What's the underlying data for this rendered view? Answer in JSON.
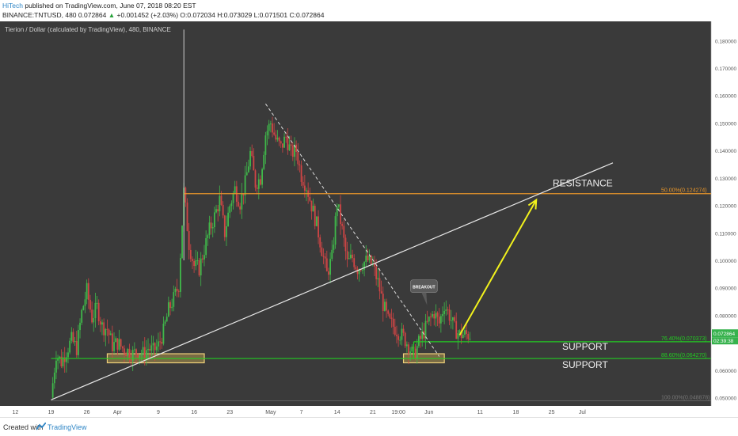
{
  "header": {
    "author": "HiTech",
    "published": "published on TradingView.com, June 07, 2018 08:20 EST",
    "symbol": "BINANCE:TNTUSD, 480",
    "last": "0.072864",
    "change": "+0.001452 (+2.03%)",
    "open": "O:0.072034",
    "high": "H:0.073029",
    "low": "L:0.071501",
    "close": "C:0.072864"
  },
  "colors": {
    "background": "#3a3a3a",
    "up": "#3fb84a",
    "down": "#d04545",
    "resistance": "#e8962a",
    "support": "#22cc22",
    "trendline": "#e8e8e8",
    "projection": "#f2f21c",
    "axis_bg": "#ffffff"
  },
  "chart_data": {
    "type": "candlestick",
    "title": "Tierion / Dollar (calculated by TradingView), 480, BINANCE",
    "ylim": [
      0.047,
      0.187
    ],
    "y_ticks": [
      "0.180000",
      "0.170000",
      "0.160000",
      "0.150000",
      "0.140000",
      "0.130000",
      "0.120000",
      "0.110000",
      "0.100000",
      "0.090000",
      "0.080000",
      "0.060000",
      "0.050000"
    ],
    "x_ticks": [
      {
        "label": "12",
        "day": -7
      },
      {
        "label": "19",
        "day": 0
      },
      {
        "label": "26",
        "day": 7
      },
      {
        "label": "Apr",
        "day": 13
      },
      {
        "label": "9",
        "day": 21
      },
      {
        "label": "16",
        "day": 28
      },
      {
        "label": "23",
        "day": 35
      },
      {
        "label": "May",
        "day": 43
      },
      {
        "label": "7",
        "day": 49
      },
      {
        "label": "14",
        "day": 56
      },
      {
        "label": "21",
        "day": 63
      },
      {
        "label": "19:00",
        "day": 68
      },
      {
        "label": "Jun",
        "day": 74
      },
      {
        "label": "11",
        "day": 84
      },
      {
        "label": "18",
        "day": 91
      },
      {
        "label": "25",
        "day": 98
      },
      {
        "label": "Jul",
        "day": 104
      }
    ],
    "price_path": [
      [
        0,
        0.05
      ],
      [
        1,
        0.066
      ],
      [
        2,
        0.063
      ],
      [
        3,
        0.067
      ],
      [
        4,
        0.071
      ],
      [
        5,
        0.068
      ],
      [
        6,
        0.081
      ],
      [
        7,
        0.089
      ],
      [
        8,
        0.079
      ],
      [
        9,
        0.083
      ],
      [
        10,
        0.076
      ],
      [
        11,
        0.075
      ],
      [
        12,
        0.069
      ],
      [
        13,
        0.07
      ],
      [
        14,
        0.068
      ],
      [
        15,
        0.067
      ],
      [
        16,
        0.066
      ],
      [
        17,
        0.067
      ],
      [
        18,
        0.066
      ],
      [
        19,
        0.068
      ],
      [
        20,
        0.067
      ],
      [
        21,
        0.069
      ],
      [
        22,
        0.074
      ],
      [
        23,
        0.082
      ],
      [
        24,
        0.086
      ],
      [
        25,
        0.091
      ],
      [
        26,
        0.125
      ],
      [
        27,
        0.106
      ],
      [
        28,
        0.098
      ],
      [
        29,
        0.097
      ],
      [
        30,
        0.104
      ],
      [
        31,
        0.111
      ],
      [
        32,
        0.116
      ],
      [
        33,
        0.122
      ],
      [
        34,
        0.11
      ],
      [
        35,
        0.12
      ],
      [
        36,
        0.126
      ],
      [
        37,
        0.121
      ],
      [
        38,
        0.128
      ],
      [
        39,
        0.139
      ],
      [
        40,
        0.128
      ],
      [
        41,
        0.13
      ],
      [
        42,
        0.146
      ],
      [
        43,
        0.15
      ],
      [
        44,
        0.144
      ],
      [
        45,
        0.141
      ],
      [
        46,
        0.145
      ],
      [
        47,
        0.139
      ],
      [
        48,
        0.14
      ],
      [
        49,
        0.131
      ],
      [
        50,
        0.127
      ],
      [
        51,
        0.12
      ],
      [
        52,
        0.113
      ],
      [
        53,
        0.104
      ],
      [
        54,
        0.095
      ],
      [
        55,
        0.101
      ],
      [
        56,
        0.121
      ],
      [
        57,
        0.111
      ],
      [
        58,
        0.099
      ],
      [
        59,
        0.101
      ],
      [
        60,
        0.097
      ],
      [
        61,
        0.099
      ],
      [
        62,
        0.1
      ],
      [
        63,
        0.098
      ],
      [
        64,
        0.092
      ],
      [
        65,
        0.084
      ],
      [
        66,
        0.078
      ],
      [
        67,
        0.076
      ],
      [
        68,
        0.074
      ],
      [
        69,
        0.072
      ],
      [
        70,
        0.069
      ],
      [
        71,
        0.065
      ],
      [
        72,
        0.07
      ],
      [
        73,
        0.074
      ],
      [
        74,
        0.078
      ],
      [
        75,
        0.081
      ],
      [
        76,
        0.077
      ],
      [
        77,
        0.084
      ],
      [
        78,
        0.08
      ],
      [
        79,
        0.075
      ],
      [
        80,
        0.073
      ],
      [
        81,
        0.073
      ],
      [
        82,
        0.0729
      ]
    ],
    "spike_high": {
      "day": 26,
      "value": 0.184
    },
    "levels": [
      {
        "name": "resistance",
        "label": "RESISTANCE",
        "fib": "50.00%(0.124274)",
        "value": 0.124274
      },
      {
        "name": "support-upper",
        "label": "SUPPORT",
        "fib": "76.40%(0.070373)",
        "value": 0.070373
      },
      {
        "name": "support-lower",
        "label": "SUPPORT",
        "fib": "88.60%(0.064270)",
        "value": 0.06427
      },
      {
        "name": "base",
        "label": "",
        "fib": "100.00%(0.048878)",
        "value": 0.048878
      }
    ],
    "trendline": {
      "from": {
        "day": 0,
        "value": 0.0492
      },
      "to": {
        "day": 110,
        "value": 0.1355
      }
    },
    "downtrend": {
      "from": {
        "day": 42,
        "value": 0.157
      },
      "to": {
        "day": 76,
        "value": 0.065
      }
    },
    "projection": {
      "from": {
        "day": 80,
        "value": 0.0728
      },
      "to": {
        "day": 95,
        "value": 0.122
      }
    },
    "zones": [
      {
        "from_day": 11,
        "to_day": 30,
        "low": 0.0627,
        "high": 0.066
      },
      {
        "from_day": 69,
        "to_day": 77,
        "low": 0.0627,
        "high": 0.066
      }
    ],
    "breakout": {
      "label": "BREAKOUT",
      "day": 73,
      "value": 0.09
    },
    "last_price_label": "0.072864",
    "countdown_label": "02:39:38"
  }
}
